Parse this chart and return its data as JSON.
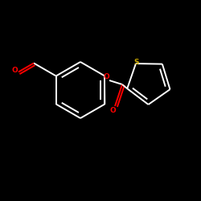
{
  "background_color": "#000000",
  "bond_color": "#ffffff",
  "oxygen_color": "#ff0000",
  "sulfur_color": "#ccaa00",
  "line_width": 1.4,
  "figsize": [
    2.5,
    2.5
  ],
  "dpi": 100,
  "xlim": [
    0,
    250
  ],
  "ylim": [
    0,
    250
  ]
}
